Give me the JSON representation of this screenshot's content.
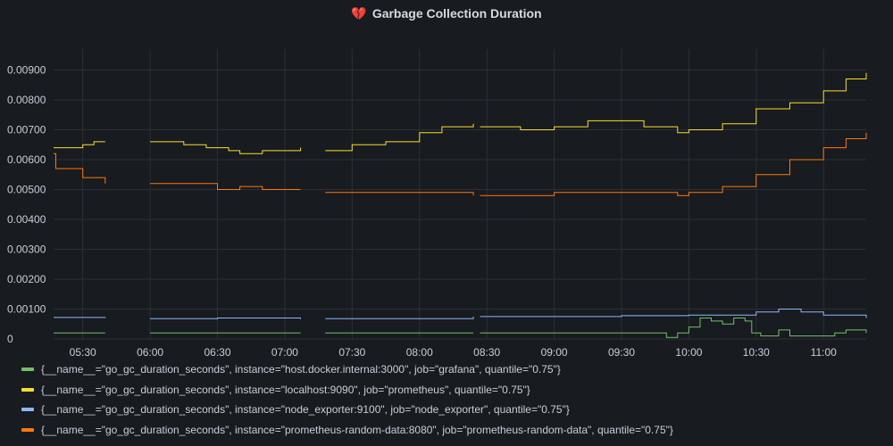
{
  "panel": {
    "title": "Garbage Collection Duration",
    "icon": "broken-heart-icon"
  },
  "chart_data": {
    "type": "line",
    "title": "Garbage Collection Duration",
    "xlim": [
      "05:17",
      "11:19"
    ],
    "ylim": [
      0,
      0.0097
    ],
    "x_ticks": [
      "05:30",
      "06:00",
      "06:30",
      "07:00",
      "07:30",
      "08:00",
      "08:30",
      "09:00",
      "09:30",
      "10:00",
      "10:30",
      "11:00"
    ],
    "y_ticks": [
      "0",
      "0.00100",
      "0.00200",
      "0.00300",
      "0.00400",
      "0.00500",
      "0.00600",
      "0.00700",
      "0.00800",
      "0.00900"
    ],
    "grid": true,
    "legend": "bottom",
    "series": [
      {
        "name": "{__name__=\"go_gc_duration_seconds\", instance=\"host.docker.internal:3000\", job=\"grafana\", quantile=\"0.75\"}",
        "color": "#73bf69",
        "points": [
          [
            "05:17",
            0.0002
          ],
          [
            "05:40",
            0.0002
          ],
          null,
          [
            "06:00",
            0.0002
          ],
          [
            "07:07",
            0.0002
          ],
          null,
          [
            "07:18",
            0.0002
          ],
          [
            "08:24",
            0.0002
          ],
          null,
          [
            "08:27",
            0.0002
          ],
          [
            "09:30",
            0.0002
          ],
          [
            "09:45",
            0.0002
          ],
          [
            "09:50",
            5e-05
          ],
          [
            "09:55",
            0.0002
          ],
          [
            "10:00",
            0.0004
          ],
          [
            "10:05",
            0.0007
          ],
          [
            "10:10",
            0.0006
          ],
          [
            "10:15",
            0.0005
          ],
          [
            "10:20",
            0.0007
          ],
          [
            "10:25",
            0.0006
          ],
          [
            "10:28",
            0.0002
          ],
          [
            "10:32",
            0.0001
          ],
          [
            "10:40",
            0.0003
          ],
          [
            "10:45",
            0.0001
          ],
          [
            "10:55",
            0.0001
          ],
          [
            "11:05",
            0.0002
          ],
          [
            "11:10",
            0.0003
          ],
          [
            "11:19",
            0.0002
          ]
        ]
      },
      {
        "name": "{__name__=\"go_gc_duration_seconds\", instance=\"localhost:9090\", job=\"prometheus\", quantile=\"0.75\"}",
        "color": "#fade2a",
        "points": [
          [
            "05:17",
            0.0064
          ],
          [
            "05:25",
            0.0064
          ],
          [
            "05:30",
            0.0065
          ],
          [
            "05:35",
            0.0066
          ],
          [
            "05:40",
            0.0066
          ],
          null,
          [
            "06:00",
            0.0066
          ],
          [
            "06:15",
            0.0065
          ],
          [
            "06:25",
            0.0064
          ],
          [
            "06:35",
            0.0063
          ],
          [
            "06:40",
            0.0062
          ],
          [
            "06:50",
            0.0063
          ],
          [
            "07:07",
            0.0064
          ],
          null,
          [
            "07:18",
            0.0063
          ],
          [
            "07:30",
            0.0065
          ],
          [
            "07:45",
            0.0066
          ],
          [
            "08:00",
            0.0069
          ],
          [
            "08:10",
            0.0071
          ],
          [
            "08:24",
            0.0072
          ],
          null,
          [
            "08:27",
            0.0071
          ],
          [
            "08:45",
            0.007
          ],
          [
            "09:00",
            0.0071
          ],
          [
            "09:15",
            0.0073
          ],
          [
            "09:30",
            0.0073
          ],
          [
            "09:40",
            0.0071
          ],
          [
            "09:55",
            0.0069
          ],
          [
            "10:00",
            0.007
          ],
          [
            "10:15",
            0.0072
          ],
          [
            "10:30",
            0.0077
          ],
          [
            "10:45",
            0.0079
          ],
          [
            "11:00",
            0.0083
          ],
          [
            "11:10",
            0.0087
          ],
          [
            "11:19",
            0.0089
          ]
        ]
      },
      {
        "name": "{__name__=\"go_gc_duration_seconds\", instance=\"node_exporter:9100\", job=\"node_exporter\", quantile=\"0.75\"}",
        "color": "#8ab8ff",
        "points": [
          [
            "05:17",
            0.00072
          ],
          [
            "05:40",
            0.0007
          ],
          null,
          [
            "06:00",
            0.00068
          ],
          [
            "06:30",
            0.0007
          ],
          [
            "07:07",
            0.00067
          ],
          null,
          [
            "07:18",
            0.00068
          ],
          [
            "08:24",
            0.00075
          ],
          null,
          [
            "08:27",
            0.00075
          ],
          [
            "09:30",
            0.00078
          ],
          [
            "10:00",
            0.0008
          ],
          [
            "10:30",
            0.0009
          ],
          [
            "10:40",
            0.001
          ],
          [
            "10:50",
            0.0009
          ],
          [
            "11:00",
            0.0008
          ],
          [
            "11:19",
            0.0007
          ]
        ]
      },
      {
        "name": "{__name__=\"go_gc_duration_seconds\", instance=\"prometheus-random-data:8080\", job=\"prometheus-random-data\", quantile=\"0.75\"}",
        "color": "#ff780a",
        "points": [
          [
            "05:17",
            0.0062
          ],
          [
            "05:18",
            0.0057
          ],
          [
            "05:30",
            0.0054
          ],
          [
            "05:40",
            0.0052
          ],
          null,
          [
            "06:00",
            0.0052
          ],
          [
            "06:15",
            0.0052
          ],
          [
            "06:30",
            0.005
          ],
          [
            "06:40",
            0.0051
          ],
          [
            "06:50",
            0.005
          ],
          [
            "07:07",
            0.005
          ],
          null,
          [
            "07:18",
            0.0049
          ],
          [
            "08:00",
            0.0049
          ],
          [
            "08:24",
            0.0048
          ],
          null,
          [
            "08:27",
            0.0048
          ],
          [
            "09:00",
            0.0049
          ],
          [
            "09:30",
            0.0049
          ],
          [
            "09:55",
            0.0048
          ],
          [
            "10:00",
            0.0049
          ],
          [
            "10:15",
            0.0051
          ],
          [
            "10:30",
            0.0055
          ],
          [
            "10:45",
            0.006
          ],
          [
            "11:00",
            0.0064
          ],
          [
            "11:10",
            0.0067
          ],
          [
            "11:19",
            0.0069
          ]
        ]
      }
    ]
  }
}
